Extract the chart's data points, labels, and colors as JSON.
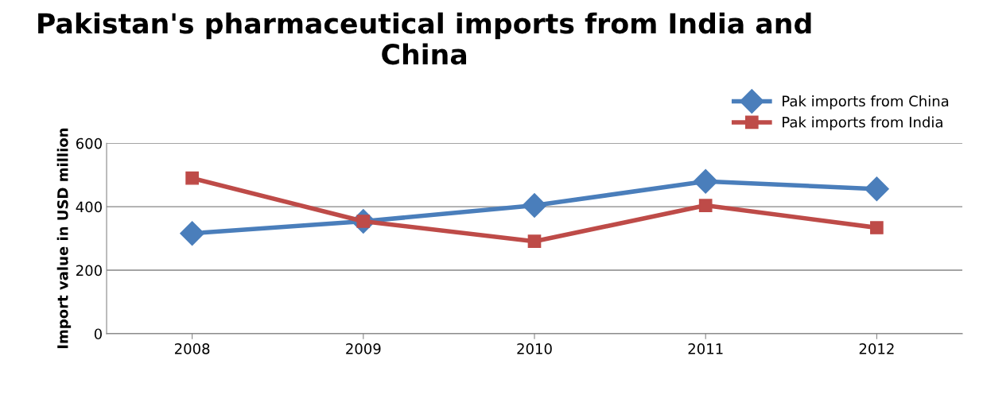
{
  "chart_data": {
    "type": "line",
    "title": "Pakistan's pharmaceutical imports from India and China",
    "ylabel": "Import value in USD million",
    "categories": [
      "2008",
      "2009",
      "2010",
      "2011",
      "2012"
    ],
    "series": [
      {
        "name": "Pak imports from China",
        "color": "#4a7ebb",
        "marker": "diamond",
        "values": [
          316,
          354,
          404,
          480,
          456
        ]
      },
      {
        "name": "Pak imports from India",
        "color": "#be4b48",
        "marker": "square",
        "values": [
          490,
          354,
          291,
          404,
          334
        ]
      }
    ],
    "ylim": [
      0,
      600
    ],
    "yticks": [
      0,
      200,
      400,
      600
    ],
    "grid": "y",
    "legend": "top right",
    "line_style": "solid"
  }
}
